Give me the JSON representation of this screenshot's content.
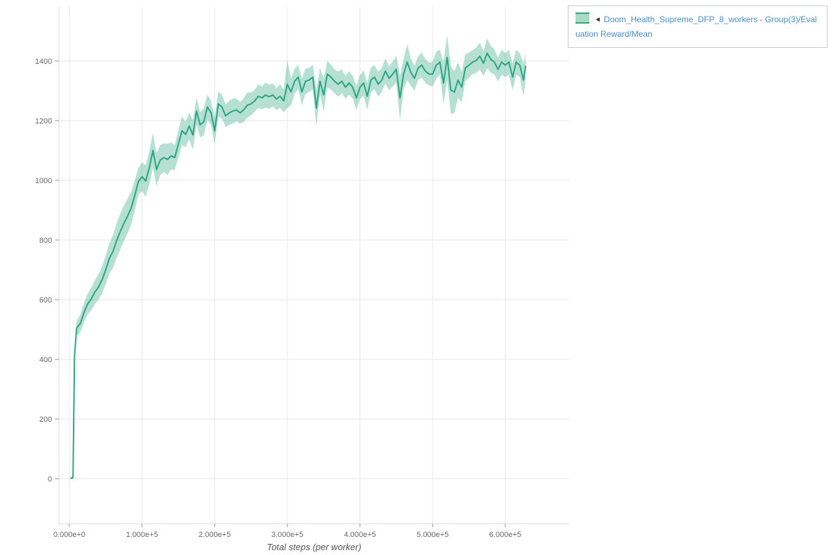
{
  "page": {
    "background": "#ffffff"
  },
  "colors": {
    "line": "#2ba57e",
    "band_fill": "#2ba57e",
    "band_opacity": 0.35,
    "band_swatch": "#a9dcc6",
    "grid": "#e7e7e7",
    "axis_line": "#d9d9d9",
    "tick_mark": "#999999",
    "tick_label": "#666666",
    "legend_text": "#4a8dc0",
    "legend_border": "#cccccc",
    "axis_title": "#555555"
  },
  "legend": {
    "collapse_marker": "◄",
    "series_label": "Doom_Health_Supreme_DFP_8_workers - Group(3)/Evaluation Reward/Mean"
  },
  "chart_data": {
    "type": "line",
    "title": "",
    "xlabel": "Total steps (per worker)",
    "ylabel": "",
    "grid": true,
    "legend_position": "top-right",
    "xlim": [
      -14300,
      688000
    ],
    "ylim": [
      -151,
      1581
    ],
    "x_ticks": [
      0,
      100000,
      200000,
      300000,
      400000,
      500000,
      600000
    ],
    "x_tick_labels": [
      "0.000e+0",
      "1.000e+5",
      "2.000e+5",
      "3.000e+5",
      "4.000e+5",
      "5.000e+5",
      "6.000e+5"
    ],
    "y_ticks": [
      0,
      200,
      400,
      600,
      800,
      1000,
      1200,
      1400
    ],
    "y_tick_labels": [
      "0",
      "200",
      "400",
      "600",
      "800",
      "1000",
      "1200",
      "1400"
    ],
    "series": [
      {
        "name": "Doom_Health_Supreme_DFP_8_workers - Group(3)/Evaluation Reward/Mean",
        "color": "#2ba57e",
        "band": "mean±spread",
        "points": [
          [
            2000,
            2,
            3
          ],
          [
            5000,
            3,
            4
          ],
          [
            7000,
            410,
            15
          ],
          [
            10000,
            505,
            25
          ],
          [
            15000,
            520,
            30
          ],
          [
            20000,
            556,
            32
          ],
          [
            25000,
            585,
            35
          ],
          [
            30000,
            602,
            38
          ],
          [
            35000,
            625,
            40
          ],
          [
            40000,
            642,
            42
          ],
          [
            45000,
            667,
            45
          ],
          [
            50000,
            700,
            48
          ],
          [
            55000,
            738,
            50
          ],
          [
            60000,
            762,
            55
          ],
          [
            65000,
            798,
            58
          ],
          [
            70000,
            828,
            60
          ],
          [
            75000,
            856,
            60
          ],
          [
            80000,
            880,
            58
          ],
          [
            85000,
            906,
            55
          ],
          [
            90000,
            950,
            50
          ],
          [
            95000,
            996,
            45
          ],
          [
            100000,
            1012,
            48
          ],
          [
            105000,
            998,
            52
          ],
          [
            110000,
            1042,
            55
          ],
          [
            115000,
            1100,
            58
          ],
          [
            120000,
            1036,
            55
          ],
          [
            125000,
            1068,
            50
          ],
          [
            130000,
            1076,
            48
          ],
          [
            135000,
            1070,
            52
          ],
          [
            140000,
            1082,
            45
          ],
          [
            145000,
            1076,
            42
          ],
          [
            150000,
            1122,
            45
          ],
          [
            155000,
            1166,
            48
          ],
          [
            160000,
            1154,
            42
          ],
          [
            165000,
            1182,
            45
          ],
          [
            170000,
            1152,
            50
          ],
          [
            175000,
            1232,
            45
          ],
          [
            180000,
            1186,
            42
          ],
          [
            185000,
            1196,
            45
          ],
          [
            190000,
            1246,
            42
          ],
          [
            195000,
            1226,
            40
          ],
          [
            200000,
            1166,
            45
          ],
          [
            205000,
            1256,
            42
          ],
          [
            210000,
            1246,
            40
          ],
          [
            215000,
            1216,
            38
          ],
          [
            220000,
            1226,
            40
          ],
          [
            225000,
            1232,
            42
          ],
          [
            230000,
            1236,
            38
          ],
          [
            235000,
            1226,
            36
          ],
          [
            240000,
            1236,
            40
          ],
          [
            245000,
            1252,
            42
          ],
          [
            250000,
            1256,
            38
          ],
          [
            255000,
            1266,
            36
          ],
          [
            260000,
            1282,
            40
          ],
          [
            265000,
            1276,
            38
          ],
          [
            270000,
            1286,
            42
          ],
          [
            275000,
            1280,
            40
          ],
          [
            280000,
            1286,
            38
          ],
          [
            285000,
            1272,
            36
          ],
          [
            290000,
            1282,
            40
          ],
          [
            295000,
            1266,
            38
          ],
          [
            300000,
            1322,
            80
          ],
          [
            305000,
            1296,
            45
          ],
          [
            310000,
            1332,
            42
          ],
          [
            315000,
            1346,
            40
          ],
          [
            320000,
            1296,
            45
          ],
          [
            325000,
            1332,
            42
          ],
          [
            330000,
            1336,
            40
          ],
          [
            335000,
            1346,
            42
          ],
          [
            340000,
            1242,
            60
          ],
          [
            345000,
            1332,
            45
          ],
          [
            350000,
            1286,
            55
          ],
          [
            355000,
            1356,
            45
          ],
          [
            360000,
            1346,
            42
          ],
          [
            365000,
            1332,
            40
          ],
          [
            370000,
            1322,
            42
          ],
          [
            375000,
            1332,
            40
          ],
          [
            380000,
            1312,
            38
          ],
          [
            385000,
            1326,
            40
          ],
          [
            390000,
            1312,
            38
          ],
          [
            395000,
            1276,
            42
          ],
          [
            400000,
            1312,
            40
          ],
          [
            405000,
            1326,
            42
          ],
          [
            410000,
            1282,
            45
          ],
          [
            415000,
            1336,
            42
          ],
          [
            420000,
            1346,
            40
          ],
          [
            425000,
            1322,
            42
          ],
          [
            430000,
            1336,
            40
          ],
          [
            435000,
            1366,
            42
          ],
          [
            440000,
            1342,
            40
          ],
          [
            445000,
            1356,
            42
          ],
          [
            450000,
            1372,
            45
          ],
          [
            455000,
            1276,
            75
          ],
          [
            460000,
            1356,
            50
          ],
          [
            465000,
            1396,
            60
          ],
          [
            470000,
            1362,
            45
          ],
          [
            475000,
            1342,
            42
          ],
          [
            480000,
            1376,
            40
          ],
          [
            485000,
            1386,
            42
          ],
          [
            490000,
            1366,
            40
          ],
          [
            495000,
            1356,
            38
          ],
          [
            500000,
            1356,
            42
          ],
          [
            505000,
            1386,
            45
          ],
          [
            510000,
            1396,
            42
          ],
          [
            515000,
            1326,
            70
          ],
          [
            520000,
            1412,
            75
          ],
          [
            525000,
            1302,
            80
          ],
          [
            530000,
            1296,
            70
          ],
          [
            535000,
            1336,
            60
          ],
          [
            540000,
            1312,
            50
          ],
          [
            545000,
            1376,
            45
          ],
          [
            550000,
            1386,
            42
          ],
          [
            555000,
            1396,
            40
          ],
          [
            560000,
            1402,
            42
          ],
          [
            565000,
            1416,
            45
          ],
          [
            570000,
            1392,
            42
          ],
          [
            575000,
            1426,
            50
          ],
          [
            580000,
            1406,
            45
          ],
          [
            585000,
            1396,
            42
          ],
          [
            590000,
            1372,
            40
          ],
          [
            595000,
            1396,
            42
          ],
          [
            600000,
            1386,
            40
          ],
          [
            605000,
            1396,
            42
          ],
          [
            610000,
            1346,
            45
          ],
          [
            615000,
            1396,
            42
          ],
          [
            620000,
            1386,
            40
          ],
          [
            625000,
            1336,
            55
          ],
          [
            628000,
            1382,
            45
          ]
        ]
      }
    ]
  }
}
